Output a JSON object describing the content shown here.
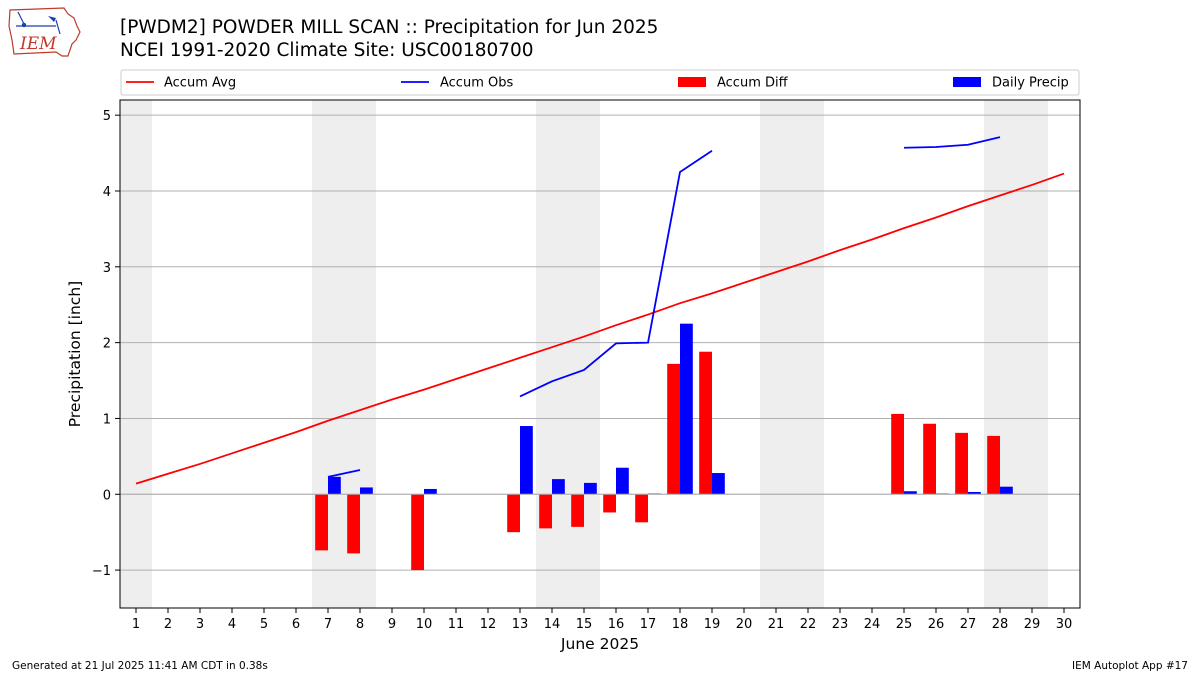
{
  "header": {
    "title_line1": "[PWDM2] POWDER MILL SCAN :: Precipitation for Jun 2025",
    "title_line2": "NCEI 1991-2020 Climate Site: USC00180700",
    "logo_text": "IEM"
  },
  "footer": {
    "generated": "Generated at 21 Jul 2025 11:41 AM CDT in 0.38s",
    "app": "IEM Autoplot App #17"
  },
  "colors": {
    "accum_avg": "#ff0000",
    "accum_obs": "#0000ff",
    "accum_diff": "#ff0000",
    "daily_precip": "#0000ff",
    "weekend_shade": "#eeeeee",
    "grid": "#b0b0b0"
  },
  "chart_data": {
    "type": "bar",
    "xlabel": "June 2025",
    "ylabel": "Precipitation [inch]",
    "xlim": [
      0.5,
      30.5
    ],
    "ylim": [
      -1.5,
      5.2
    ],
    "x_ticks": [
      1,
      2,
      3,
      4,
      5,
      6,
      7,
      8,
      9,
      10,
      11,
      12,
      13,
      14,
      15,
      16,
      17,
      18,
      19,
      20,
      21,
      22,
      23,
      24,
      25,
      26,
      27,
      28,
      29,
      30
    ],
    "y_ticks": [
      -1,
      0,
      1,
      2,
      3,
      4,
      5
    ],
    "grid": "horizontal",
    "legend_position": "top",
    "weekend_shading": [
      [
        0.5,
        1.5
      ],
      [
        6.5,
        8.5
      ],
      [
        13.5,
        15.5
      ],
      [
        20.5,
        22.5
      ],
      [
        27.5,
        29.5
      ]
    ],
    "legend": [
      {
        "label": "Accum Avg",
        "kind": "line",
        "color": "#ff0000"
      },
      {
        "label": "Accum Obs",
        "kind": "line",
        "color": "#0000ff"
      },
      {
        "label": "Accum Diff",
        "kind": "bar",
        "color": "#ff0000"
      },
      {
        "label": "Daily Precip",
        "kind": "bar",
        "color": "#0000ff"
      }
    ],
    "series": [
      {
        "name": "Accum Avg",
        "type": "line",
        "x": [
          1,
          2,
          3,
          4,
          5,
          6,
          7,
          8,
          9,
          10,
          11,
          12,
          13,
          14,
          15,
          16,
          17,
          18,
          19,
          20,
          21,
          22,
          23,
          24,
          25,
          26,
          27,
          28,
          29,
          30
        ],
        "values": [
          0.14,
          0.27,
          0.4,
          0.54,
          0.68,
          0.82,
          0.97,
          1.11,
          1.25,
          1.38,
          1.52,
          1.66,
          1.8,
          1.94,
          2.08,
          2.23,
          2.37,
          2.52,
          2.65,
          2.79,
          2.93,
          3.07,
          3.22,
          3.36,
          3.51,
          3.65,
          3.8,
          3.94,
          4.08,
          4.23
        ]
      },
      {
        "name": "Accum Obs",
        "type": "line",
        "segments": [
          {
            "x": [
              7,
              8
            ],
            "values": [
              0.23,
              0.32
            ]
          },
          {
            "x": [
              13,
              14,
              15,
              16,
              17,
              18,
              19
            ],
            "values": [
              1.29,
              1.49,
              1.64,
              1.99,
              2.0,
              4.25,
              4.53
            ]
          },
          {
            "x": [
              25,
              26,
              27,
              28
            ],
            "values": [
              4.57,
              4.58,
              4.61,
              4.71
            ]
          }
        ]
      },
      {
        "name": "Accum Diff",
        "type": "bar",
        "x": [
          7,
          8,
          10,
          13,
          14,
          15,
          16,
          17,
          18,
          19,
          25,
          26,
          27,
          28
        ],
        "values": [
          -0.74,
          -0.78,
          -1.0,
          -0.5,
          -0.45,
          -0.43,
          -0.24,
          -0.37,
          1.72,
          1.88,
          1.06,
          0.93,
          0.81,
          0.77
        ]
      },
      {
        "name": "Daily Precip",
        "type": "bar",
        "x": [
          7,
          8,
          10,
          13,
          14,
          15,
          16,
          17,
          18,
          19,
          25,
          26,
          27,
          28
        ],
        "values": [
          0.23,
          0.09,
          0.07,
          0.9,
          0.2,
          0.15,
          0.35,
          0.01,
          2.25,
          0.28,
          0.04,
          0.01,
          0.03,
          0.1
        ]
      }
    ]
  }
}
